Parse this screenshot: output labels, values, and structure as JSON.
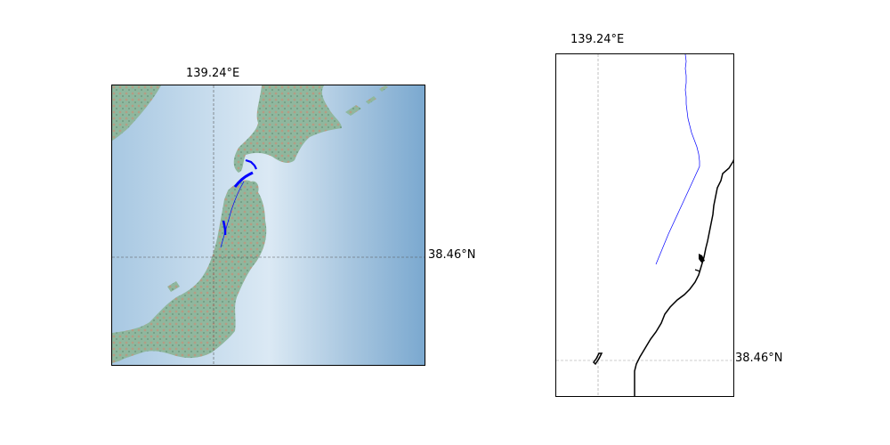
{
  "maps": [
    {
      "lon_label": "139.24°E",
      "lat_label": "38.46°N",
      "basemap": "shaded-relief",
      "colors": {
        "sea": "#7ba8cf",
        "coast_sea": "#d9e8f3",
        "land": "#8fb79e",
        "mountain": "#c7a88e",
        "track": "#0000ff",
        "grid": "#555555"
      }
    },
    {
      "lon_label": "139.24°E",
      "lat_label": "38.46°N",
      "basemap": "coastline",
      "colors": {
        "coast": "#000000",
        "track": "#0000ff",
        "grid": "#999999"
      }
    }
  ]
}
